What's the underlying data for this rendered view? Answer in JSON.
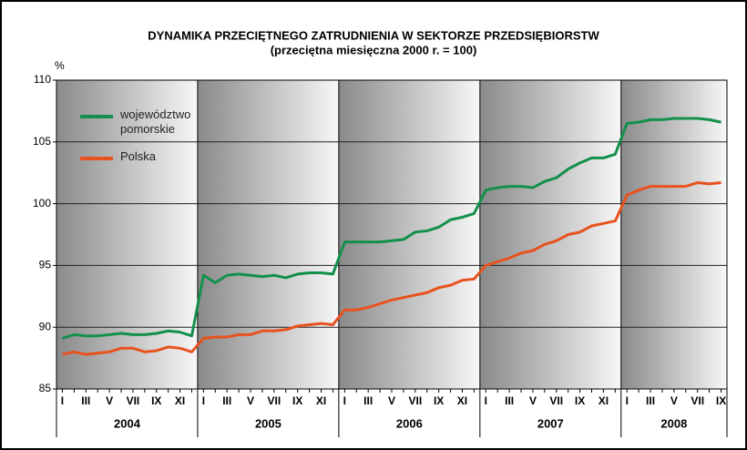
{
  "chart_data": {
    "type": "line",
    "title": "DYNAMIKA PRZECIĘTNEGO ZATRUDNIENIA W SEKTORZE PRZEDSIĘBIORSTW",
    "subtitle": "(przeciętna miesięczna 2000 r. = 100)",
    "ylabel": "%",
    "categories": [
      "I",
      null,
      "III",
      null,
      "V",
      null,
      "VII",
      null,
      "IX",
      null,
      "XI",
      null,
      "I",
      null,
      "III",
      null,
      "V",
      null,
      "VII",
      null,
      "IX",
      null,
      "XI",
      null,
      "I",
      null,
      "III",
      null,
      "V",
      null,
      "VII",
      null,
      "IX",
      null,
      "XI",
      null,
      "I",
      null,
      "III",
      null,
      "V",
      null,
      "VII",
      null,
      "IX",
      null,
      "XI",
      null,
      "I",
      null,
      "III",
      null,
      "V",
      null,
      "VII",
      null,
      "IX"
    ],
    "year_labels": [
      "2004",
      "2005",
      "2006",
      "2007",
      "2008"
    ],
    "ylim": [
      85,
      110
    ],
    "yticks": [
      85,
      90,
      95,
      100,
      105,
      110
    ],
    "grid": true,
    "legend": "upper left",
    "series": [
      {
        "name": "województwo pomorskie",
        "color": "#13904c",
        "values": [
          89.1,
          89.4,
          89.3,
          89.3,
          89.4,
          89.5,
          89.4,
          89.4,
          89.5,
          89.7,
          89.6,
          89.3,
          94.2,
          93.6,
          94.2,
          94.3,
          94.2,
          94.1,
          94.2,
          94.0,
          94.3,
          94.4,
          94.4,
          94.3,
          96.9,
          96.9,
          96.9,
          96.9,
          97.0,
          97.1,
          97.7,
          97.8,
          98.1,
          98.7,
          98.9,
          99.2,
          101.1,
          101.3,
          101.4,
          101.4,
          101.3,
          101.8,
          102.1,
          102.8,
          103.3,
          103.7,
          103.7,
          104.0,
          106.5,
          106.6,
          106.8,
          106.8,
          106.9,
          106.9,
          106.9,
          106.8,
          106.6
        ]
      },
      {
        "name": "Polska",
        "color": "#e8521e",
        "values": [
          87.8,
          88.0,
          87.8,
          87.9,
          88.0,
          88.3,
          88.3,
          88.0,
          88.1,
          88.4,
          88.3,
          88.0,
          89.1,
          89.2,
          89.2,
          89.4,
          89.4,
          89.7,
          89.7,
          89.8,
          90.1,
          90.2,
          90.3,
          90.2,
          91.4,
          91.4,
          91.6,
          91.9,
          92.2,
          92.4,
          92.6,
          92.8,
          93.2,
          93.4,
          93.8,
          93.9,
          95.0,
          95.3,
          95.6,
          96.0,
          96.2,
          96.7,
          97.0,
          97.5,
          97.7,
          98.2,
          98.4,
          98.6,
          100.7,
          101.1,
          101.4,
          101.4,
          101.4,
          101.4,
          101.7,
          101.6,
          101.7
        ]
      }
    ]
  }
}
